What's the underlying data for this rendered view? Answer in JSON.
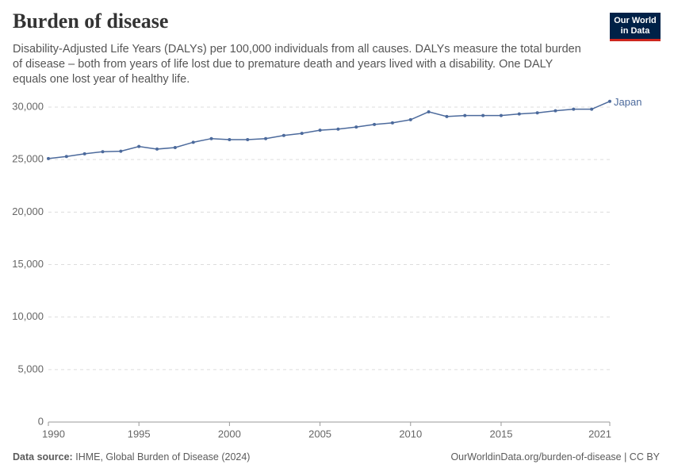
{
  "chart_data": {
    "type": "line",
    "title": "Burden of disease",
    "subtitle": "Disability-Adjusted Life Years (DALYs) per 100,000 individuals from all causes. DALYs measure the total burden of disease – both from years of life lost due to premature death and years lived with a disability. One DALY equals one lost year of healthy life.",
    "logo": [
      "Our World",
      "in Data"
    ],
    "source_label": "Data source:",
    "source": "IHME, Global Burden of Disease (2024)",
    "footer_right": "OurWorldinData.org/burden-of-disease | CC BY",
    "x": [
      1990,
      1991,
      1992,
      1993,
      1994,
      1995,
      1996,
      1997,
      1998,
      1999,
      2000,
      2001,
      2002,
      2003,
      2004,
      2005,
      2006,
      2007,
      2008,
      2009,
      2010,
      2011,
      2012,
      2013,
      2014,
      2015,
      2016,
      2017,
      2018,
      2019,
      2020,
      2021
    ],
    "series": [
      {
        "name": "Japan",
        "color": "#4c6a9c",
        "values": [
          25100,
          25300,
          25550,
          25750,
          25800,
          26250,
          26000,
          26150,
          26650,
          27000,
          26900,
          26900,
          27000,
          27300,
          27500,
          27800,
          27900,
          28100,
          28350,
          28500,
          28800,
          29550,
          29100,
          29200,
          29200,
          29200,
          29350,
          29450,
          29650,
          29800,
          29800,
          30550
        ]
      }
    ],
    "xlim": [
      1990,
      2021
    ],
    "xticks": [
      1990,
      1995,
      2000,
      2005,
      2010,
      2015,
      2021
    ],
    "ylim": [
      0,
      30000
    ],
    "yticks": [
      0,
      {
        "value": 5000,
        "label": "5,000"
      },
      {
        "value": 10000,
        "label": "10,000"
      },
      {
        "value": 15000,
        "label": "15,000"
      },
      {
        "value": 20000,
        "label": "20,000"
      },
      {
        "value": 25000,
        "label": "25,000"
      },
      {
        "value": 30000,
        "label": "30,000"
      }
    ],
    "grid": true
  }
}
